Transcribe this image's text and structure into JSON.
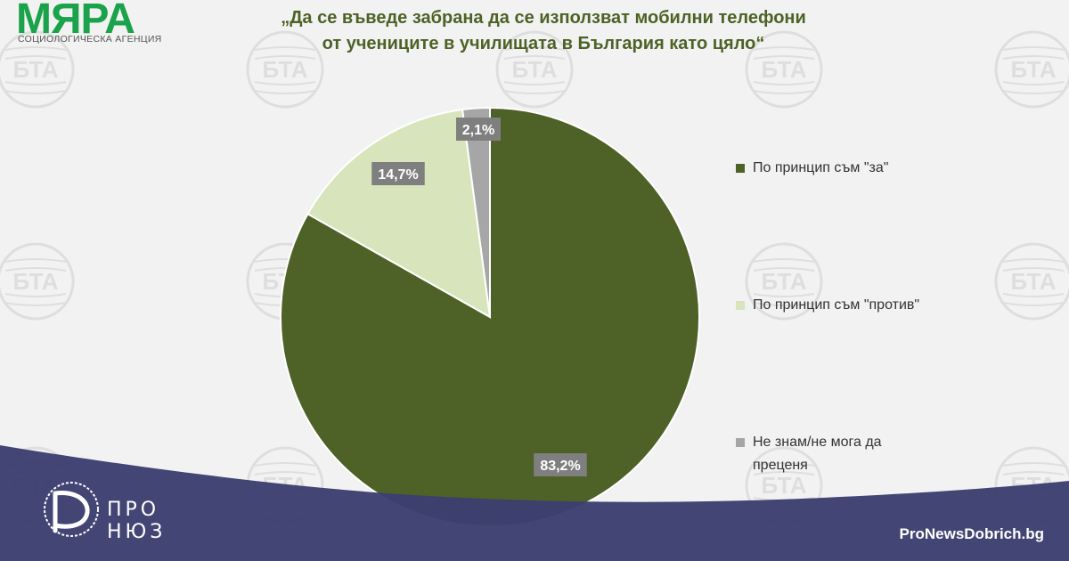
{
  "header": {
    "logo": "МЯРА",
    "logo_subtitle": "СОЦИОЛОГИЧЕСКА АГЕНЦИЯ",
    "title_line1": "„Да се въведе забрана да се използват мобилни телефони",
    "title_line2": "от учениците в училищата в България като цяло“"
  },
  "watermark_text": "БТА",
  "footer": {
    "brand_line1": "ПРО",
    "brand_line2": "НЮЗ",
    "site": "ProNewsDobrich.bg"
  },
  "colors": {
    "logo_green": "#1aa34a",
    "title_green": "#4d6226",
    "footer_band": "#3d3f70",
    "for": "#4e6126",
    "against": "#d8e4bc",
    "dont_know": "#a6a6a6",
    "label_bg": "#7f7f7f"
  },
  "chart_data": {
    "type": "pie",
    "title": "„Да се въведе забрана да се използват мобилни телефони от учениците в училищата в България като цяло“",
    "legend_position": "right",
    "slices": [
      {
        "name": "По принцип съм \"за\"",
        "value": 83.2,
        "label": "83,2%",
        "color": "#4e6126"
      },
      {
        "name": "По принцип съм \"против\"",
        "value": 14.7,
        "label": "14,7%",
        "color": "#d8e4bc"
      },
      {
        "name": "Не знам/не мога да преценя",
        "value": 2.1,
        "label": "2,1%",
        "color": "#a6a6a6"
      }
    ]
  }
}
